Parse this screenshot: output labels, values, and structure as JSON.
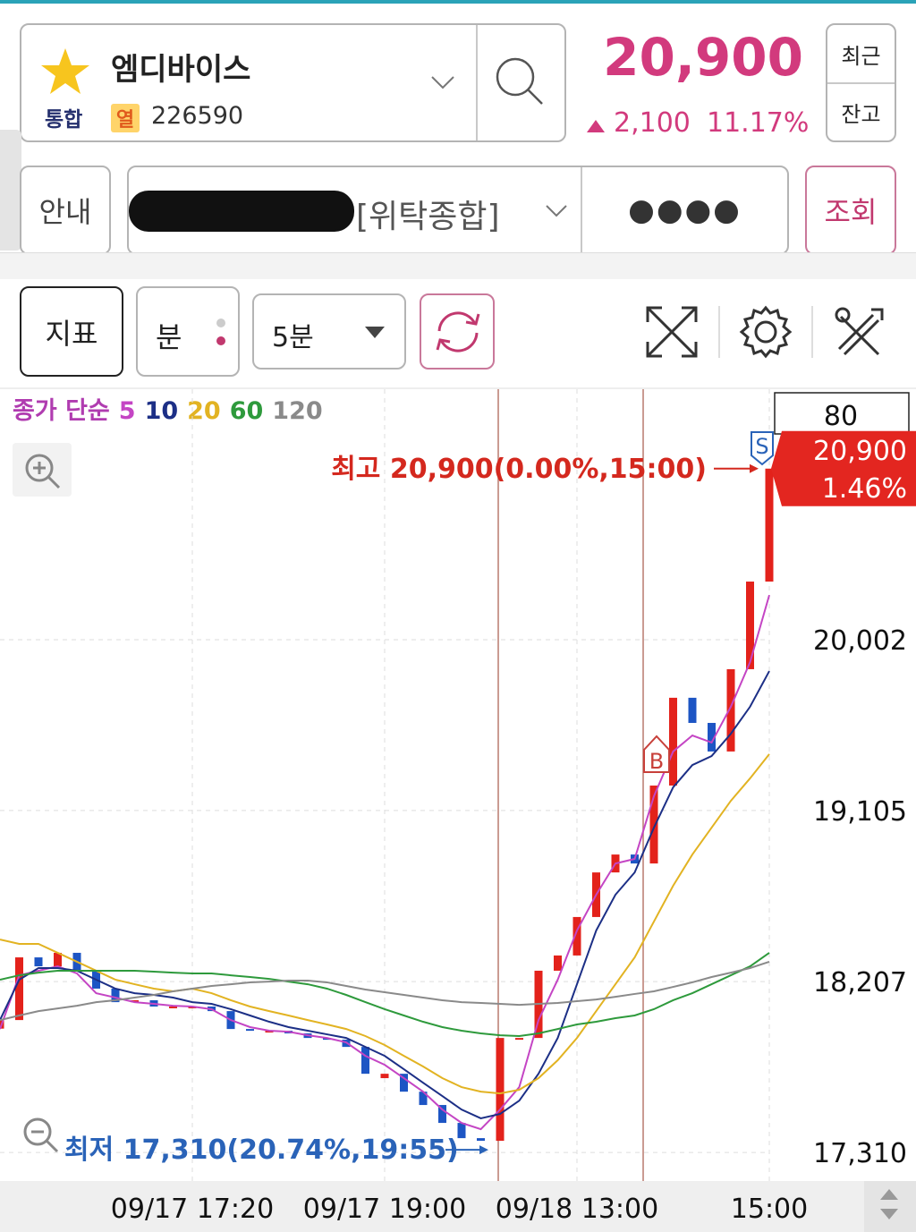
{
  "header": {
    "stock_name": "엠디바이스",
    "market": "통합",
    "tag": "열",
    "code": "226590",
    "price": "20,900",
    "change": "2,100",
    "change_rate": "11.17%",
    "recent": "최근",
    "balance": "잔고"
  },
  "account": {
    "guide": "안내",
    "account_type": "[위탁종합]",
    "password": "●●●●",
    "query": "조회"
  },
  "toolbar": {
    "indicator": "지표",
    "unit": "분",
    "interval": "5분"
  },
  "chart_data": {
    "type": "candlestick",
    "legend_label": "종가 단순",
    "categories": [
      null,
      null,
      null,
      null,
      null,
      null,
      null,
      null,
      null,
      null,
      "09/17 17:20",
      null,
      null,
      null,
      null,
      null,
      null,
      null,
      null,
      null,
      "09/17 19:00",
      null,
      null,
      null,
      null,
      null,
      null,
      null,
      null,
      null,
      "09/18 13:00",
      null,
      null,
      null,
      null,
      null,
      null,
      null,
      null,
      null,
      "15:00"
    ],
    "candles": {
      "up_color": "#e3221b",
      "down_color": "#1d55c4",
      "open": [
        17960,
        18005,
        18334,
        18287,
        18358,
        18264,
        18170,
        18099,
        18109,
        18076,
        18076,
        18076,
        18052,
        17958,
        17949,
        17949,
        17935,
        17911,
        17902,
        17864,
        17700,
        17723,
        17629,
        17559,
        17465,
        17385,
        17371,
        17911,
        17911,
        18264,
        18344,
        18546,
        18780,
        18874,
        18827,
        19236,
        19697,
        19565,
        19415,
        19847,
        20307
      ],
      "close": [
        18005,
        18334,
        18287,
        18358,
        18264,
        18170,
        18099,
        18109,
        18076,
        18076,
        18076,
        18052,
        17958,
        17949,
        17949,
        17935,
        17911,
        17902,
        17864,
        17723,
        17723,
        17629,
        17559,
        17465,
        17385,
        17371,
        17911,
        17911,
        18264,
        18344,
        18546,
        18780,
        18874,
        18827,
        19236,
        19697,
        19565,
        19415,
        19847,
        20307,
        20900
      ]
    },
    "series": [
      {
        "name": "5",
        "color": "#c445c4",
        "values": [
          17958,
          18240,
          18264,
          18287,
          18250,
          18146,
          18123,
          18099,
          18090,
          18080,
          18076,
          18062,
          18005,
          17968,
          17949,
          17944,
          17925,
          17911,
          17888,
          17817,
          17770,
          17700,
          17629,
          17535,
          17465,
          17432,
          17535,
          17653,
          18005,
          18217,
          18475,
          18663,
          18827,
          18851,
          19180,
          19415,
          19499,
          19462,
          19650,
          19884,
          20236
        ]
      },
      {
        "name": "10",
        "color": "#1c2f86",
        "values": [
          18005,
          18217,
          18278,
          18278,
          18264,
          18217,
          18170,
          18146,
          18137,
          18123,
          18099,
          18090,
          18062,
          18029,
          17996,
          17968,
          17949,
          17930,
          17911,
          17864,
          17817,
          17747,
          17676,
          17606,
          17535,
          17489,
          17512,
          17582,
          17723,
          17911,
          18193,
          18475,
          18663,
          18780,
          19015,
          19227,
          19344,
          19391,
          19508,
          19650,
          19837
        ]
      },
      {
        "name": "20",
        "color": "#e2b322",
        "values": [
          18428,
          18405,
          18405,
          18358,
          18311,
          18264,
          18217,
          18193,
          18170,
          18156,
          18170,
          18146,
          18109,
          18076,
          18052,
          18029,
          18005,
          17982,
          17958,
          17921,
          17874,
          17817,
          17761,
          17700,
          17653,
          17629,
          17620,
          17639,
          17700,
          17794,
          17911,
          18052,
          18193,
          18334,
          18522,
          18710,
          18874,
          19015,
          19156,
          19274,
          19401
        ]
      },
      {
        "name": "60",
        "color": "#2e9a3c",
        "values": [
          18217,
          18240,
          18254,
          18264,
          18264,
          18264,
          18264,
          18264,
          18259,
          18254,
          18250,
          18250,
          18240,
          18231,
          18221,
          18207,
          18193,
          18170,
          18137,
          18099,
          18062,
          18029,
          17996,
          17968,
          17949,
          17935,
          17925,
          17921,
          17935,
          17958,
          17982,
          17996,
          18015,
          18029,
          18062,
          18109,
          18146,
          18193,
          18240,
          18287,
          18358
        ]
      },
      {
        "name": "120",
        "color": "#8a8a8a",
        "values": [
          18005,
          18029,
          18052,
          18066,
          18080,
          18099,
          18109,
          18123,
          18137,
          18156,
          18170,
          18184,
          18193,
          18203,
          18207,
          18212,
          18212,
          18203,
          18184,
          18165,
          18151,
          18137,
          18123,
          18109,
          18099,
          18095,
          18090,
          18085,
          18090,
          18095,
          18104,
          18113,
          18127,
          18142,
          18156,
          18179,
          18203,
          18231,
          18254,
          18278,
          18311
        ]
      }
    ],
    "ylim": [
      17160,
      21317
    ],
    "yticks": [
      {
        "value": 17310,
        "label": "17,310"
      },
      {
        "value": 18207,
        "label": "18,207"
      },
      {
        "value": 19105,
        "label": "19,105"
      },
      {
        "value": 20002,
        "label": "20,002"
      }
    ],
    "grid": true,
    "high_annotation": "최고 20,900(0.00%,15:00)",
    "low_annotation": "최저 17,310(20.74%,19:55)",
    "price_tag": "20,900",
    "price_tag_rate": "1.46%",
    "volume_tag": "80",
    "sell_marker": "S",
    "buy_marker": "B"
  }
}
